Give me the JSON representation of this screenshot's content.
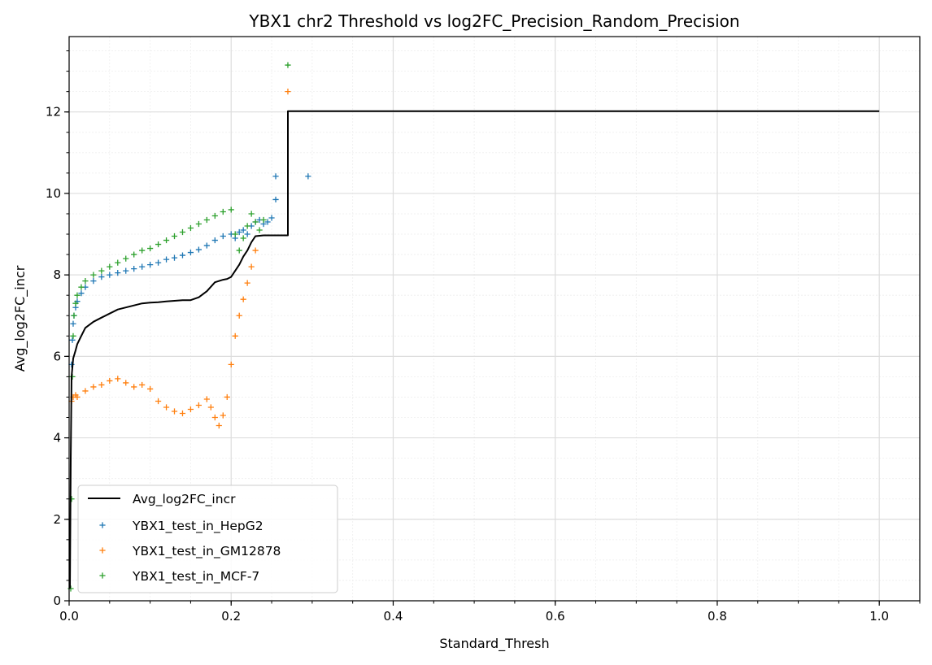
{
  "chart_data": {
    "type": "line",
    "title": "YBX1 chr2 Threshold vs log2FC_Precision_Random_Precision",
    "xlabel": "Standard_Thresh",
    "ylabel": "Avg_log2FC_incr",
    "xlim": [
      0.0,
      1.05
    ],
    "ylim": [
      0,
      13.85
    ],
    "xticks": [
      0.0,
      0.2,
      0.4,
      0.6,
      0.8,
      1.0
    ],
    "xtick_labels": [
      "0.0",
      "0.2",
      "0.4",
      "0.6",
      "0.8",
      "1.0"
    ],
    "yticks": [
      0,
      2,
      4,
      6,
      8,
      10,
      12
    ],
    "ytick_labels": [
      "0",
      "2",
      "4",
      "6",
      "8",
      "10",
      "12"
    ],
    "grid": true,
    "legend_position": "lower-left",
    "series": [
      {
        "name": "Avg_log2FC_incr",
        "kind": "line",
        "color": "#000000",
        "x": [
          0.001,
          0.002,
          0.003,
          0.005,
          0.008,
          0.01,
          0.015,
          0.02,
          0.03,
          0.04,
          0.05,
          0.06,
          0.08,
          0.09,
          0.1,
          0.11,
          0.12,
          0.14,
          0.15,
          0.16,
          0.17,
          0.18,
          0.19,
          0.195,
          0.2,
          0.205,
          0.21,
          0.215,
          0.22,
          0.225,
          0.23,
          0.24,
          0.25,
          0.26,
          0.27,
          0.27,
          0.3,
          0.5,
          0.7,
          0.9,
          1.0
        ],
        "y": [
          0.3,
          3.5,
          5.5,
          5.95,
          6.15,
          6.3,
          6.5,
          6.7,
          6.85,
          6.95,
          7.05,
          7.15,
          7.25,
          7.3,
          7.32,
          7.33,
          7.35,
          7.38,
          7.38,
          7.45,
          7.6,
          7.82,
          7.88,
          7.9,
          7.95,
          8.1,
          8.25,
          8.45,
          8.6,
          8.8,
          8.95,
          8.97,
          8.97,
          8.97,
          8.97,
          12.02,
          12.02,
          12.02,
          12.02,
          12.02,
          12.02
        ]
      },
      {
        "name": "YBX1_test_in_HepG2",
        "kind": "scatter",
        "color": "#1f77b4",
        "x": [
          0.003,
          0.004,
          0.005,
          0.006,
          0.008,
          0.01,
          0.015,
          0.02,
          0.03,
          0.04,
          0.05,
          0.06,
          0.07,
          0.08,
          0.09,
          0.1,
          0.11,
          0.12,
          0.13,
          0.14,
          0.15,
          0.16,
          0.17,
          0.18,
          0.19,
          0.2,
          0.205,
          0.21,
          0.215,
          0.22,
          0.225,
          0.23,
          0.235,
          0.24,
          0.245,
          0.25,
          0.255,
          0.255,
          0.295
        ],
        "y": [
          5.8,
          6.4,
          6.8,
          7.0,
          7.2,
          7.35,
          7.55,
          7.7,
          7.85,
          7.95,
          8.0,
          8.05,
          8.1,
          8.15,
          8.2,
          8.25,
          8.3,
          8.38,
          8.42,
          8.48,
          8.55,
          8.62,
          8.72,
          8.85,
          8.95,
          9.0,
          8.9,
          9.05,
          9.1,
          9.0,
          9.2,
          9.3,
          9.35,
          9.25,
          9.3,
          9.4,
          9.85,
          10.42,
          10.42
        ]
      },
      {
        "name": "YBX1_test_in_GM12878",
        "kind": "scatter",
        "color": "#ff7f0e",
        "x": [
          0.003,
          0.005,
          0.008,
          0.01,
          0.02,
          0.03,
          0.04,
          0.05,
          0.06,
          0.07,
          0.08,
          0.09,
          0.1,
          0.11,
          0.12,
          0.13,
          0.14,
          0.15,
          0.16,
          0.17,
          0.175,
          0.18,
          0.185,
          0.19,
          0.195,
          0.2,
          0.205,
          0.21,
          0.215,
          0.22,
          0.225,
          0.23,
          0.27
        ],
        "y": [
          4.9,
          5.0,
          5.05,
          5.0,
          5.15,
          5.25,
          5.3,
          5.4,
          5.45,
          5.35,
          5.25,
          5.3,
          5.2,
          4.9,
          4.75,
          4.65,
          4.6,
          4.7,
          4.8,
          4.95,
          4.75,
          4.5,
          4.3,
          4.55,
          5.0,
          5.8,
          6.5,
          7.0,
          7.4,
          7.8,
          8.2,
          8.6,
          12.5
        ]
      },
      {
        "name": "YBX1_test_in_MCF-7",
        "kind": "scatter",
        "color": "#2ca02c",
        "x": [
          0.002,
          0.003,
          0.004,
          0.005,
          0.006,
          0.008,
          0.01,
          0.015,
          0.02,
          0.03,
          0.04,
          0.05,
          0.06,
          0.07,
          0.08,
          0.09,
          0.1,
          0.11,
          0.12,
          0.13,
          0.14,
          0.15,
          0.16,
          0.17,
          0.18,
          0.19,
          0.2,
          0.205,
          0.21,
          0.215,
          0.22,
          0.225,
          0.23,
          0.235,
          0.24,
          0.27
        ],
        "y": [
          0.3,
          2.5,
          5.5,
          6.5,
          7.0,
          7.3,
          7.5,
          7.7,
          7.85,
          8.0,
          8.1,
          8.2,
          8.3,
          8.4,
          8.5,
          8.6,
          8.65,
          8.75,
          8.85,
          8.95,
          9.05,
          9.15,
          9.25,
          9.35,
          9.45,
          9.55,
          9.6,
          9.0,
          8.6,
          8.9,
          9.2,
          9.5,
          9.3,
          9.1,
          9.35,
          13.15
        ]
      }
    ]
  }
}
